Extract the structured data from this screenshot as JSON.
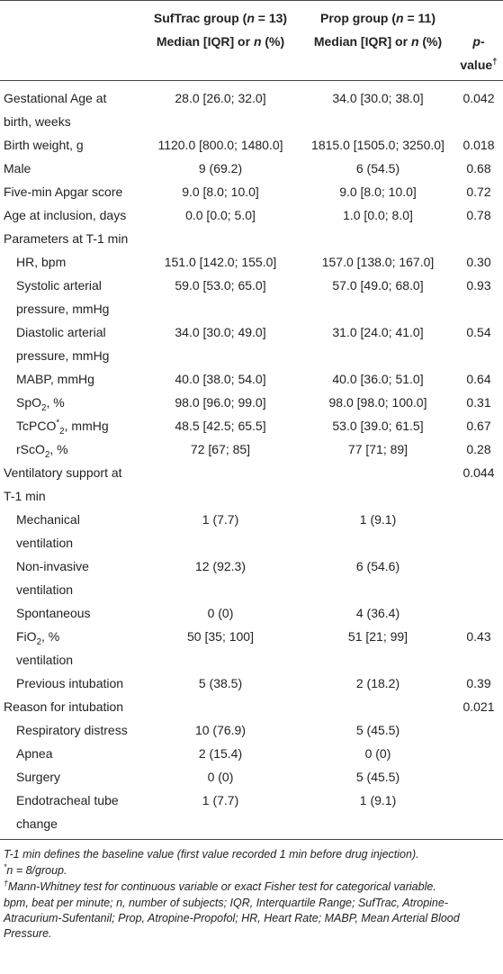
{
  "table": {
    "header": {
      "groups": [
        [
          "SufTrac group (",
          {
            "text": "n",
            "style": "i"
          },
          " = 13)"
        ],
        [
          "Prop group (",
          {
            "text": "n",
            "style": "i"
          },
          " = 11)"
        ]
      ],
      "subheader": [
        [
          "Median [IQR] or ",
          {
            "text": "n",
            "style": "i"
          },
          " (%)"
        ],
        [
          "Median [IQR] or ",
          {
            "text": "n",
            "style": "i"
          },
          " (%)"
        ],
        [
          {
            "text": "p",
            "style": "i"
          },
          "-value",
          {
            "text": "†",
            "style": "sup"
          }
        ]
      ]
    },
    "rows": [
      {
        "label": [
          "Gestational Age at birth, weeks"
        ],
        "cells": [
          "28.0 [26.0; 32.0]",
          "34.0 [30.0; 38.0]",
          "0.042"
        ]
      },
      {
        "label": [
          "Birth weight, g"
        ],
        "cells": [
          "1120.0 [800.0; 1480.0]",
          "1815.0 [1505.0; 3250.0]",
          "0.018"
        ]
      },
      {
        "label": [
          "Male"
        ],
        "cells": [
          "9 (69.2)",
          "6 (54.5)",
          "0.68"
        ]
      },
      {
        "label": [
          "Five-min Apgar score"
        ],
        "cells": [
          "9.0 [8.0; 10.0]",
          "9.0 [8.0; 10.0]",
          "0.72"
        ]
      },
      {
        "label": [
          "Age at inclusion, days"
        ],
        "cells": [
          "0.0 [0.0; 5.0]",
          "1.0 [0.0; 8.0]",
          "0.78"
        ]
      },
      {
        "label": [
          "Parameters at T-1 min"
        ],
        "cells": [
          null,
          null,
          null
        ]
      },
      {
        "label": [
          "HR, bpm"
        ],
        "indent": true,
        "cells": [
          "151.0 [142.0; 155.0]",
          "157.0 [138.0; 167.0]",
          "0.30"
        ]
      },
      {
        "label": [
          "Systolic arterial pressure, mmHg"
        ],
        "indent": true,
        "cells": [
          "59.0 [53.0; 65.0]",
          "57.0 [49.0; 68.0]",
          "0.93"
        ]
      },
      {
        "label": [
          "Diastolic arterial pressure, mmHg"
        ],
        "indent": true,
        "cells": [
          "34.0 [30.0; 49.0]",
          "31.0 [24.0; 41.0]",
          "0.54"
        ]
      },
      {
        "label": [
          "MABP, mmHg"
        ],
        "indent": true,
        "cells": [
          "40.0 [38.0; 54.0]",
          "40.0 [36.0; 51.0]",
          "0.64"
        ]
      },
      {
        "label": [
          "SpO",
          {
            "text": "2",
            "style": "sub"
          },
          ", %"
        ],
        "indent": true,
        "cells": [
          "98.0 [96.0; 99.0]",
          "98.0 [98.0; 100.0]",
          "0.31"
        ]
      },
      {
        "label": [
          "TcPCO",
          {
            "text": "*",
            "style": "sup"
          },
          {
            "text": "2",
            "style": "sub"
          },
          ", mmHg"
        ],
        "indent": true,
        "cells": [
          "48.5 [42.5; 65.5]",
          "53.0 [39.0; 61.5]",
          "0.67"
        ]
      },
      {
        "label": [
          "rScO",
          {
            "text": "2",
            "style": "sub"
          },
          ", %"
        ],
        "indent": true,
        "cells": [
          "72 [67; 85]",
          "77 [71; 89]",
          "0.28"
        ]
      },
      {
        "label": [
          "Ventilatory support at T-1 min"
        ],
        "cells": [
          null,
          null,
          "0.044"
        ]
      },
      {
        "label": [
          "Mechanical ventilation"
        ],
        "indent": true,
        "cells": [
          "1 (7.7)",
          "1 (9.1)",
          null
        ]
      },
      {
        "label": [
          "Non-invasive ventilation"
        ],
        "indent": true,
        "cells": [
          "12 (92.3)",
          "6 (54.6)",
          null
        ]
      },
      {
        "label": [
          "Spontaneous"
        ],
        "indent": true,
        "cells": [
          "0 (0)",
          "4 (36.4)",
          null
        ]
      },
      {
        "label": [
          "FiO",
          {
            "text": "2",
            "style": "sub"
          },
          ", %",
          {
            "text": "ventilation",
            "style": "block"
          }
        ],
        "indent": true,
        "cells": [
          "50 [35; 100]",
          "51 [21; 99]",
          "0.43"
        ]
      },
      {
        "label": [
          "Previous intubation"
        ],
        "indent": true,
        "cells": [
          "5 (38.5)",
          "2 (18.2)",
          "0.39"
        ]
      },
      {
        "label": [
          "Reason for intubation"
        ],
        "cells": [
          null,
          null,
          "0.021"
        ]
      },
      {
        "label": [
          "Respiratory distress"
        ],
        "indent": true,
        "cells": [
          "10 (76.9)",
          "5 (45.5)",
          null
        ]
      },
      {
        "label": [
          "Apnea"
        ],
        "indent": true,
        "cells": [
          "2 (15.4)",
          "0 (0)",
          null
        ]
      },
      {
        "label": [
          "Surgery"
        ],
        "indent": true,
        "cells": [
          "0 (0)",
          "5 (45.5)",
          null
        ]
      },
      {
        "label": [
          "Endotracheal tube change"
        ],
        "indent": true,
        "cells": [
          "1 (7.7)",
          "1 (9.1)",
          null
        ]
      }
    ]
  },
  "footnotes": [
    [
      "T-1 min defines the baseline value (first value recorded 1 min before drug injection)."
    ],
    [
      {
        "text": "*",
        "style": "sup"
      },
      "n = 8/group."
    ],
    [
      {
        "text": "†",
        "style": "sup"
      },
      "Mann-Whitney test for continuous variable or exact Fisher test for categorical variable."
    ],
    [
      "bpm, beat per minute; n, number of subjects; IQR, Interquartile Range; SufTrac, Atropine-Atracurium-Sufentanil; Prop, Atropine-Propofol; HR, Heart Rate; MABP, Mean Arterial Blood Pressure."
    ]
  ]
}
